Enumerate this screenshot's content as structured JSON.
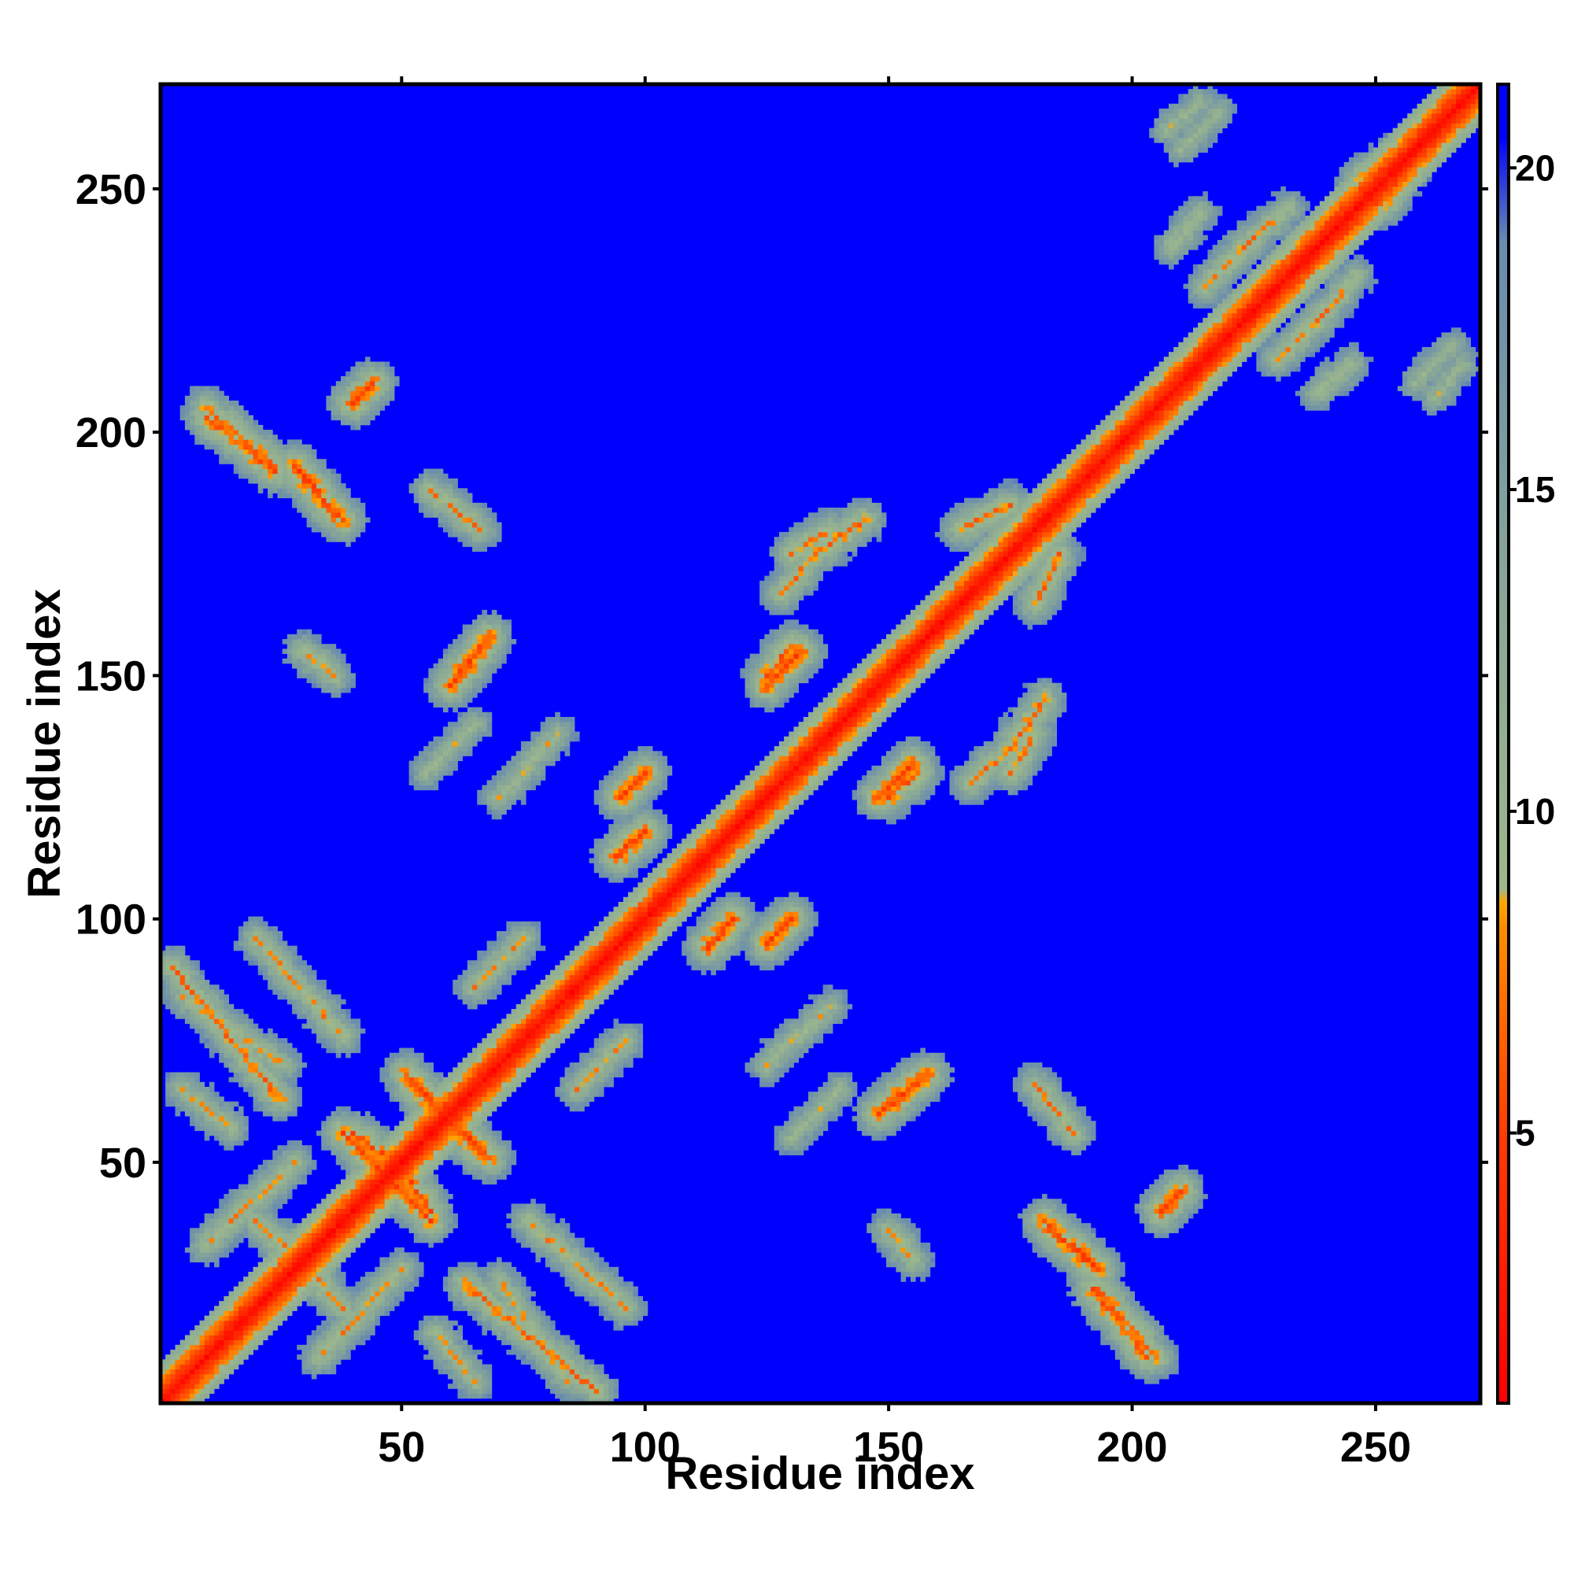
{
  "chart_data": {
    "type": "heatmap",
    "title": "",
    "xlabel": "Residue index",
    "ylabel": "Residue index",
    "xlim": [
      1,
      271
    ],
    "ylim": [
      1,
      271
    ],
    "n_residues": 271,
    "x_ticks": [
      50,
      100,
      150,
      200,
      250
    ],
    "y_ticks": [
      50,
      100,
      150,
      200,
      250
    ],
    "x_tick_labels": [
      "50",
      "100",
      "150",
      "200",
      "250"
    ],
    "y_tick_labels": [
      "50",
      "100",
      "150",
      "200",
      "250"
    ],
    "colorbar": {
      "min": 0.8,
      "max": 21.3,
      "ticks": [
        5,
        10,
        15,
        20
      ],
      "tick_labels": [
        "5",
        "10",
        "15",
        "20"
      ],
      "colors": [
        "#ff0000",
        "#ff3a00",
        "#ff8c00",
        "#ffa500",
        "#9db88c",
        "#8aa896",
        "#6a8cae",
        "#0000ff"
      ],
      "stops": [
        0.0,
        0.2,
        0.36,
        0.38,
        0.39,
        0.6,
        0.88,
        0.96
      ]
    },
    "background_value": 21.3,
    "diagonal_band": {
      "start": 1,
      "end": 271,
      "value_on_diagonal": 1.5
    },
    "contact_segments": [
      {
        "x1": 38,
        "y1": 56,
        "x2": 52,
        "y2": 42,
        "type": "antiparallel",
        "value": 5.5
      },
      {
        "x1": 50,
        "y1": 48,
        "x2": 56,
        "y2": 40,
        "type": "antiparallel",
        "value": 6.0
      },
      {
        "x1": 51,
        "y1": 68,
        "x2": 66,
        "y2": 52,
        "type": "antiparallel",
        "value": 5.5
      },
      {
        "x1": 20,
        "y1": 38,
        "x2": 34,
        "y2": 25,
        "type": "antiparallel",
        "value": 8.0
      },
      {
        "x1": 63,
        "y1": 25,
        "x2": 90,
        "y2": 3,
        "type": "antiparallel",
        "value": 7.0
      },
      {
        "x1": 33,
        "y1": 10,
        "x2": 50,
        "y2": 28,
        "type": "antiparallel",
        "value": 8.0
      },
      {
        "x1": 57,
        "y1": 15,
        "x2": 65,
        "y2": 5,
        "type": "antiparallel",
        "value": 8.5
      },
      {
        "x1": 20,
        "y1": 96,
        "x2": 38,
        "y2": 76,
        "type": "antiparallel",
        "value": 8.0
      },
      {
        "x1": 5,
        "y1": 84,
        "x2": 26,
        "y2": 70,
        "type": "antiparallel",
        "value": 9.0
      },
      {
        "x1": 148,
        "y1": 60,
        "x2": 158,
        "y2": 68,
        "type": "parallel",
        "value": 5.5
      },
      {
        "x1": 182,
        "y1": 38,
        "x2": 193,
        "y2": 28,
        "type": "antiparallel",
        "value": 5.5
      },
      {
        "x1": 192,
        "y1": 24,
        "x2": 203,
        "y2": 10,
        "type": "antiparallel",
        "value": 6.0
      },
      {
        "x1": 180,
        "y1": 66,
        "x2": 188,
        "y2": 56,
        "type": "antiparallel",
        "value": 7.5
      },
      {
        "x1": 95,
        "y1": 125,
        "x2": 100,
        "y2": 130,
        "type": "parallel",
        "value": 5.5
      },
      {
        "x1": 94,
        "y1": 113,
        "x2": 100,
        "y2": 118,
        "type": "parallel",
        "value": 5.5
      },
      {
        "x1": 113,
        "y1": 95,
        "x2": 118,
        "y2": 100,
        "type": "parallel",
        "value": 5.5
      },
      {
        "x1": 125,
        "y1": 95,
        "x2": 130,
        "y2": 100,
        "type": "parallel",
        "value": 5.5
      },
      {
        "x1": 125,
        "y1": 148,
        "x2": 132,
        "y2": 155,
        "type": "parallel",
        "value": 5.0
      },
      {
        "x1": 150,
        "y1": 125,
        "x2": 156,
        "y2": 130,
        "type": "parallel",
        "value": 6.0
      },
      {
        "x1": 60,
        "y1": 148,
        "x2": 67,
        "y2": 156,
        "type": "parallel",
        "value": 5.5
      },
      {
        "x1": 30,
        "y1": 155,
        "x2": 36,
        "y2": 150,
        "type": "antiparallel",
        "value": 8.0
      },
      {
        "x1": 10,
        "y1": 205,
        "x2": 24,
        "y2": 193,
        "type": "antiparallel",
        "value": 6.5
      },
      {
        "x1": 28,
        "y1": 193,
        "x2": 36,
        "y2": 183,
        "type": "antiparallel",
        "value": 6.0
      },
      {
        "x1": 175,
        "y1": 135,
        "x2": 182,
        "y2": 145,
        "type": "parallel",
        "value": 7.0
      },
      {
        "x1": 167,
        "y1": 128,
        "x2": 175,
        "y2": 135,
        "type": "parallel",
        "value": 7.5
      },
      {
        "x1": 180,
        "y1": 165,
        "x2": 185,
        "y2": 175,
        "type": "parallel",
        "value": 7.0
      },
      {
        "x1": 130,
        "y1": 175,
        "x2": 138,
        "y2": 180,
        "type": "parallel",
        "value": 7.5
      },
      {
        "x1": 215,
        "y1": 230,
        "x2": 225,
        "y2": 240,
        "type": "parallel",
        "value": 7.5
      },
      {
        "x1": 238,
        "y1": 208,
        "x2": 245,
        "y2": 214,
        "type": "antiparallel",
        "value": 9.0
      },
      {
        "x1": 262,
        "y1": 207,
        "x2": 268,
        "y2": 214,
        "type": "antiparallel",
        "value": 10.0
      },
      {
        "x1": 210,
        "y1": 258,
        "x2": 218,
        "y2": 266,
        "type": "antiparallel",
        "value": 10.0
      },
      {
        "x1": 246,
        "y1": 252,
        "x2": 256,
        "y2": 258,
        "type": "antiparallel",
        "value": 8.5
      },
      {
        "x1": 240,
        "y1": 225,
        "x2": 246,
        "y2": 232,
        "type": "parallel",
        "value": 8.5
      },
      {
        "x1": 86,
        "y1": 65,
        "x2": 96,
        "y2": 75,
        "type": "parallel",
        "value": 8.0
      },
      {
        "x1": 40,
        "y1": 206,
        "x2": 44,
        "y2": 210,
        "type": "parallel",
        "value": 5.0
      },
      {
        "x1": 70,
        "y1": 125,
        "x2": 82,
        "y2": 138,
        "type": "parallel",
        "value": 9.0
      },
      {
        "x1": 55,
        "y1": 130,
        "x2": 65,
        "y2": 140,
        "type": "parallel",
        "value": 9.5
      }
    ]
  }
}
